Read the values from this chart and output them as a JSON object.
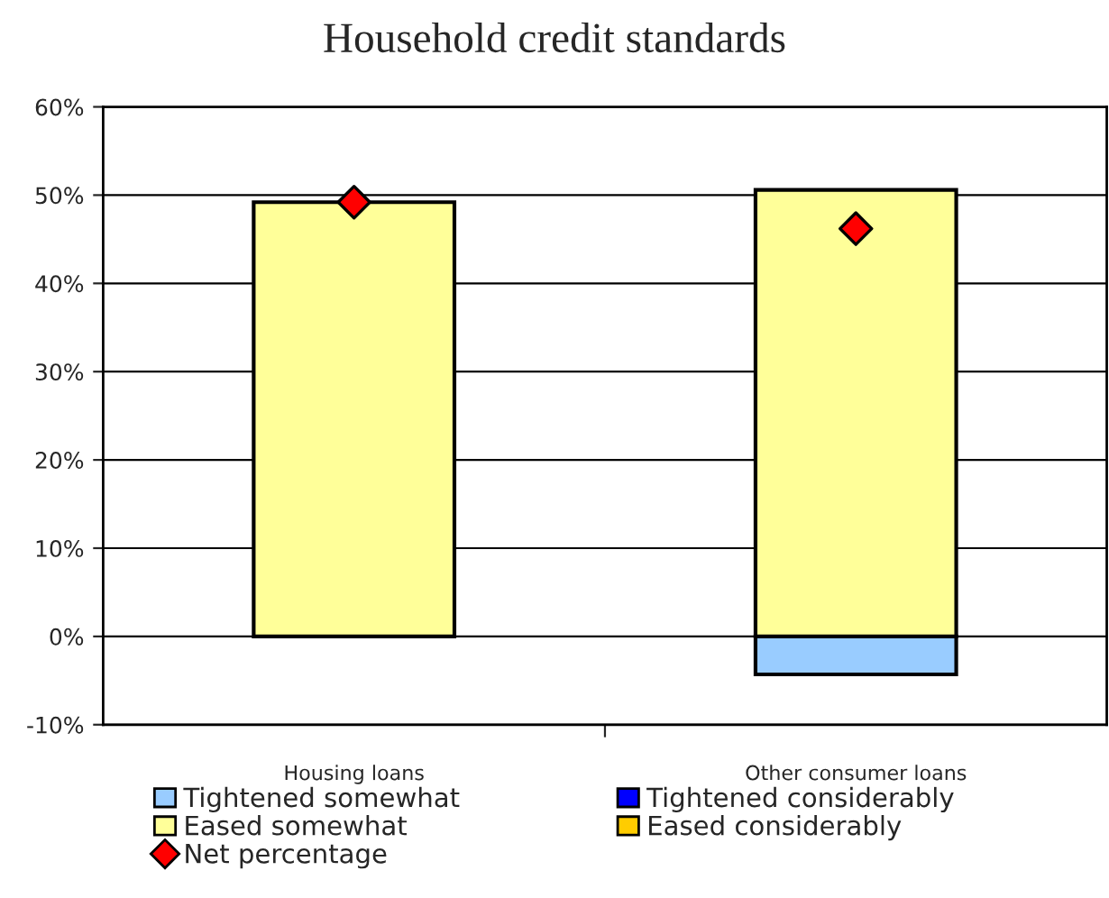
{
  "chart_data": {
    "type": "bar",
    "title": "Household credit standards",
    "stacked": true,
    "categories": [
      "Housing loans",
      "Other consumer loans"
    ],
    "series": [
      {
        "name": "Tightened somewhat",
        "color": "#99ccff",
        "values": [
          0,
          -4.3
        ]
      },
      {
        "name": "Tightened considerably",
        "color": "#0000ff",
        "values": [
          0,
          0
        ]
      },
      {
        "name": "Eased somewhat",
        "color": "#ffff99",
        "values": [
          49.2,
          50.6
        ]
      },
      {
        "name": "Eased considerably",
        "color": "#ffcc00",
        "values": [
          0,
          0
        ]
      },
      {
        "name": "Net percentage",
        "type": "scatter",
        "color": "#ff0000",
        "marker": "diamond",
        "values": [
          49.2,
          46.2
        ]
      }
    ],
    "ylim": [
      -10,
      60
    ],
    "yticks": [
      {
        "value": -10,
        "label": "-10%"
      },
      {
        "value": 0,
        "label": "0%"
      },
      {
        "value": 10,
        "label": "10%"
      },
      {
        "value": 20,
        "label": "20%"
      },
      {
        "value": 30,
        "label": "30%"
      },
      {
        "value": 40,
        "label": "40%"
      },
      {
        "value": 50,
        "label": "50%"
      },
      {
        "value": 60,
        "label": "60%"
      }
    ],
    "grid": "y",
    "legend": "bottom"
  }
}
